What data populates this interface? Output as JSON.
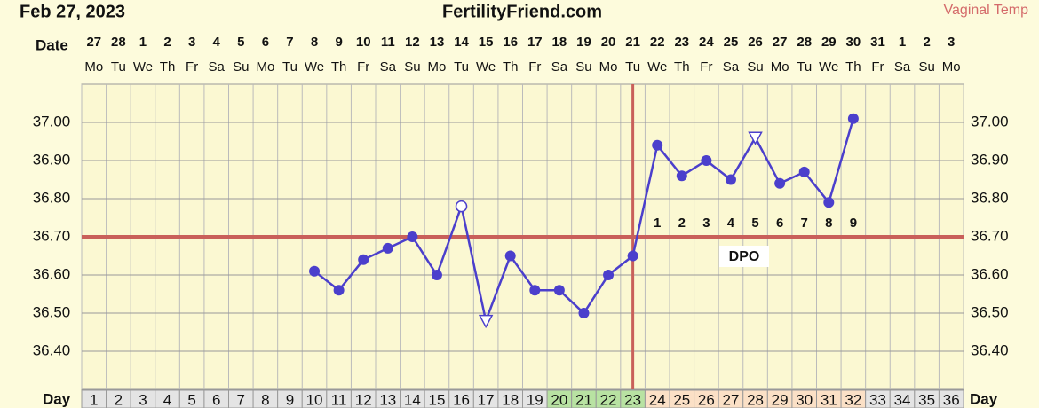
{
  "chart_data": {
    "type": "line",
    "title": "FertilityFriend.com",
    "date_label": "Feb 27, 2023",
    "subtitle": "Vaginal Temp",
    "date_row_label": "Date",
    "day_row_label": "Day",
    "dates": [
      27,
      28,
      1,
      2,
      3,
      4,
      5,
      6,
      7,
      8,
      9,
      10,
      11,
      12,
      13,
      14,
      15,
      16,
      17,
      18,
      19,
      20,
      21,
      22,
      23,
      24,
      25,
      26,
      27,
      28,
      29,
      30,
      31,
      1,
      2,
      3
    ],
    "weekdays": [
      "Mo",
      "Tu",
      "We",
      "Th",
      "Fr",
      "Sa",
      "Su",
      "Mo",
      "Tu",
      "We",
      "Th",
      "Fr",
      "Sa",
      "Su",
      "Mo",
      "Tu",
      "We",
      "Th",
      "Fr",
      "Sa",
      "Su",
      "Mo",
      "Tu",
      "We",
      "Th",
      "Fr",
      "Sa",
      "Su",
      "Mo",
      "Tu",
      "We",
      "Th",
      "Fr",
      "Sa",
      "Su",
      "Mo"
    ],
    "categories": [
      1,
      2,
      3,
      4,
      5,
      6,
      7,
      8,
      9,
      10,
      11,
      12,
      13,
      14,
      15,
      16,
      17,
      18,
      19,
      20,
      21,
      22,
      23,
      24,
      25,
      26,
      27,
      28,
      29,
      30,
      31,
      32,
      33,
      34,
      35,
      36
    ],
    "series": [
      {
        "name": "Temperature",
        "color": "#4b3fcc",
        "values": [
          null,
          null,
          null,
          null,
          null,
          null,
          null,
          null,
          null,
          36.61,
          36.56,
          36.64,
          36.67,
          36.7,
          36.6,
          36.78,
          36.48,
          36.65,
          36.56,
          36.56,
          36.5,
          36.6,
          36.65,
          36.94,
          36.86,
          36.9,
          36.85,
          36.96,
          36.84,
          36.87,
          36.79,
          37.01,
          null,
          null,
          null,
          null
        ],
        "markers": [
          null,
          null,
          null,
          null,
          null,
          null,
          null,
          null,
          null,
          "dot",
          "dot",
          "dot",
          "dot",
          "dot",
          "dot",
          "circle",
          "triangle",
          "dot",
          "dot",
          "dot",
          "dot",
          "dot",
          "dot",
          "dot",
          "dot",
          "dot",
          "dot",
          "triangle",
          "dot",
          "dot",
          "dot",
          "dot",
          null,
          null,
          null,
          null
        ]
      }
    ],
    "ylim": [
      36.3,
      37.1
    ],
    "yticks": [
      {
        "value": 36.4,
        "label": "36.40"
      },
      {
        "value": 36.5,
        "label": "36.50"
      },
      {
        "value": 36.6,
        "label": "36.60"
      },
      {
        "value": 36.7,
        "label": "36.70"
      },
      {
        "value": 36.8,
        "label": "36.80"
      },
      {
        "value": 36.9,
        "label": "36.90"
      },
      {
        "value": 37.0,
        "label": "37.00"
      }
    ],
    "grid": true,
    "coverline": 36.7,
    "coverline_color": "#c9605a",
    "ovulation_day": 23,
    "dpo_label": "DPO",
    "dpo_numbers": [
      1,
      2,
      3,
      4,
      5,
      6,
      7,
      8,
      9
    ],
    "dpo_start_day": 24,
    "day_default_color": "#e4e4e4",
    "phases": [
      {
        "from": 20,
        "to": 23,
        "color": "#b8e2a2"
      },
      {
        "from": 24,
        "to": 32,
        "color": "#fbe0c6"
      }
    ]
  }
}
